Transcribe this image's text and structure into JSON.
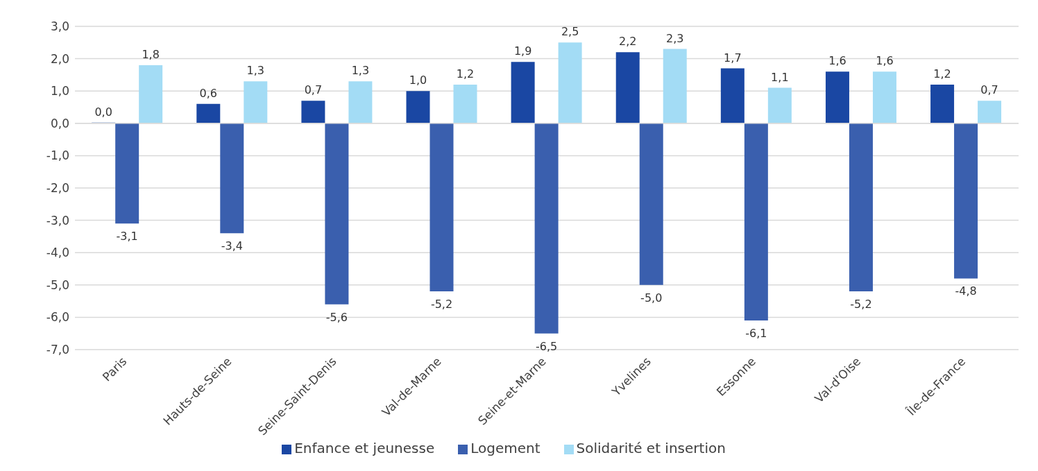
{
  "chart_data": {
    "type": "bar",
    "categories": [
      "Paris",
      "Hauts-de-Seine",
      "Seine-Saint-Denis",
      "Val-de-Marne",
      "Seine-et-Marne",
      "Yvelines",
      "Essonne",
      "Val-d'Oise",
      "Île-de-France"
    ],
    "series": [
      {
        "name": "Enfance et jeunesse",
        "color": "#1a47a3",
        "values": [
          0.0,
          0.6,
          0.7,
          1.0,
          1.9,
          2.2,
          1.7,
          1.6,
          1.2
        ],
        "value_labels": [
          "0,0",
          "0,6",
          "0,7",
          "1,0",
          "1,9",
          "2,2",
          "1,7",
          "1,6",
          "1,2"
        ]
      },
      {
        "name": "Logement",
        "color": "#3a5fae",
        "values": [
          -3.1,
          -3.4,
          -5.6,
          -5.2,
          -6.5,
          -5.0,
          -6.1,
          -5.2,
          -4.8
        ],
        "value_labels": [
          "-3,1",
          "-3,4",
          "-5,6",
          "-5,2",
          "-6,5",
          "-5,0",
          "-6,1",
          "-5,2",
          "-4,8"
        ]
      },
      {
        "name": "Solidarité et insertion",
        "color": "#a3dcf5",
        "values": [
          1.8,
          1.3,
          1.3,
          1.2,
          2.5,
          2.3,
          1.1,
          1.6,
          0.7
        ],
        "value_labels": [
          "1,8",
          "1,3",
          "1,3",
          "1,2",
          "2,5",
          "2,3",
          "1,1",
          "1,6",
          "0,7"
        ]
      }
    ],
    "ylim": [
      -7,
      3
    ],
    "yticks": [
      {
        "value": 3,
        "label": "3,0"
      },
      {
        "value": 2,
        "label": "2,0"
      },
      {
        "value": 1,
        "label": "1,0"
      },
      {
        "value": 0,
        "label": "0,0"
      },
      {
        "value": -1,
        "label": "-1,0"
      },
      {
        "value": -2,
        "label": "-2,0"
      },
      {
        "value": -3,
        "label": "-3,0"
      },
      {
        "value": -4,
        "label": "-4,0"
      },
      {
        "value": -5,
        "label": "-5,0"
      },
      {
        "value": -6,
        "label": "-6,0"
      },
      {
        "value": -7,
        "label": "-7,0"
      }
    ],
    "grid": "y",
    "legend": "bottom"
  }
}
